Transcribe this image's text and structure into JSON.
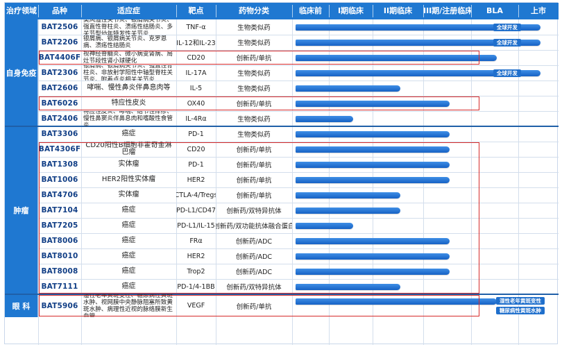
{
  "header": {
    "columns": [
      "治疗领域",
      "品种",
      "适应症",
      "靶点",
      "药物分类",
      "临床前",
      "I期临床",
      "II期临床",
      "III期/注册临床",
      "BLA",
      "上市"
    ]
  },
  "areas": [
    "自身免疫",
    "肿瘤",
    "眼 科"
  ],
  "rows": [
    {
      "code": "BAT2506",
      "indication": "类风湿性关节炎、银屑病关节炎、强直性脊柱炎、溃疡性结肠炎、多关节型幼年特发性关节炎",
      "target": "TNF-α",
      "class": "生物类似药",
      "stage": 6,
      "tag": "全球开发"
    },
    {
      "code": "BAT2206",
      "indication": "银屑病、银屑病关节炎、克罗恩病、溃疡性结肠炎",
      "target": "IL-12和IL-23",
      "class": "生物类似药",
      "stage": 6,
      "tag": "全球开发"
    },
    {
      "code": "BAT4406F",
      "indication": "视神经脊髓炎、微小病变肾病、局灶节段性肾小球硬化",
      "target": "CD20",
      "class": "创新药/单抗",
      "stage": 5
    },
    {
      "code": "BAT2306",
      "indication": "银屑病、银屑病关节炎、强直性脊柱炎、非放射学阳性中轴型脊柱关节炎、附着点炎相关关节炎",
      "target": "IL-17A",
      "class": "生物类似药",
      "stage": 6,
      "tag": "全球开发"
    },
    {
      "code": "BAT2606",
      "indication": "哮喘、慢性鼻炎伴鼻息肉等",
      "target": "IL-5",
      "class": "生物类似药",
      "stage": 3
    },
    {
      "code": "BAT6026",
      "indication": "特应性皮炎",
      "target": "OX40",
      "class": "创新药/单抗",
      "stage": 4
    },
    {
      "code": "BAT2406",
      "indication": "特应性皮炎、哮喘、结节性痒疹、慢性鼻窦炎伴鼻息肉和嗜酸性食管炎",
      "target": "IL-4Rα",
      "class": "生物类似药",
      "stage": 2
    },
    {
      "code": "BAT3306",
      "indication": "癌症",
      "target": "PD-1",
      "class": "生物类似药",
      "stage": 4
    },
    {
      "code": "BAT4306F",
      "indication": "CD20阳性B细胞非霍奇金淋巴瘤",
      "target": "CD20",
      "class": "创新药/单抗",
      "stage": 4
    },
    {
      "code": "BAT1308",
      "indication": "实体瘤",
      "target": "PD-1",
      "class": "创新药/单抗",
      "stage": 4
    },
    {
      "code": "BAT1006",
      "indication": "HER2阳性实体瘤",
      "target": "HER2",
      "class": "创新药/单抗",
      "stage": 4
    },
    {
      "code": "BAT4706",
      "indication": "实体瘤",
      "target": "CTLA-4/Tregs",
      "class": "创新药/单抗",
      "stage": 3
    },
    {
      "code": "BAT7104",
      "indication": "癌症",
      "target": "PD-L1/CD47",
      "class": "创新药/双特异抗体",
      "stage": 3
    },
    {
      "code": "BAT7205",
      "indication": "癌症",
      "target": "PD-L1/IL-15",
      "class": "创新药/双功能抗体融合蛋白",
      "stage": 2
    },
    {
      "code": "BAT8006",
      "indication": "癌症",
      "target": "FRα",
      "class": "创新药/ADC",
      "stage": 4
    },
    {
      "code": "BAT8010",
      "indication": "癌症",
      "target": "HER2",
      "class": "创新药/ADC",
      "stage": 4
    },
    {
      "code": "BAT8008",
      "indication": "癌症",
      "target": "Trop2",
      "class": "创新药/ADC",
      "stage": 4
    },
    {
      "code": "BAT7111",
      "indication": "癌症",
      "target": "PD-1/4-1BB",
      "class": "创新药/双特异抗体",
      "stage": 3
    },
    {
      "code": "BAT5906",
      "indication": "湿性老年黄斑变性、糖尿病性黄斑水肿、视网膜中央静脉阻塞所致黄斑水肿、病理性近视的脉络膜新生血管",
      "target": "VEGF",
      "class": "创新药/单抗",
      "stage": 5,
      "tags": [
        "湿性老年黄斑变性",
        "糖尿病性黄斑水肿"
      ]
    }
  ],
  "colors": {
    "header_blue": "#1f78d1",
    "bar_blue": "#2f7ed8",
    "highlight_red": "#d62a2a",
    "code_text": "#123f86"
  }
}
